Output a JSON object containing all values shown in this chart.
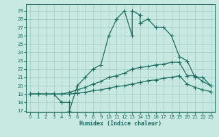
{
  "xlabel": "Humidex (Indice chaleur)",
  "bg_color": "#c8e8e2",
  "grid_color": "#a8cfc8",
  "line_color": "#1a6b60",
  "xlim": [
    -0.5,
    23.5
  ],
  "ylim": [
    16.8,
    29.8
  ],
  "yticks": [
    17,
    18,
    19,
    20,
    21,
    22,
    23,
    24,
    25,
    26,
    27,
    28,
    29
  ],
  "xticks": [
    0,
    1,
    2,
    3,
    4,
    5,
    6,
    7,
    8,
    9,
    10,
    11,
    12,
    13,
    14,
    15,
    16,
    17,
    18,
    19,
    20,
    21,
    22,
    23
  ],
  "curve1_x": [
    0,
    1,
    2,
    3,
    4,
    4,
    5,
    5,
    6,
    7,
    8,
    9,
    10,
    11,
    12,
    13,
    13,
    14,
    14,
    15,
    16,
    17,
    18,
    19,
    20,
    21,
    22,
    23
  ],
  "curve1_y": [
    19,
    19,
    19,
    19,
    18,
    18,
    18,
    17,
    20,
    21,
    22,
    22.5,
    26,
    28,
    29,
    26,
    29,
    28.5,
    27.5,
    28,
    27,
    27,
    26,
    23.5,
    23,
    21,
    21,
    20
  ],
  "curve2_x": [
    0,
    1,
    2,
    3,
    4,
    5,
    6,
    7,
    8,
    9,
    10,
    11,
    12,
    13,
    14,
    15,
    16,
    17,
    18,
    19,
    20,
    21,
    22,
    23
  ],
  "curve2_y": [
    19,
    19,
    19,
    19,
    19,
    19.2,
    19.5,
    19.8,
    20.2,
    20.5,
    21,
    21.2,
    21.5,
    22,
    22.2,
    22.3,
    22.5,
    22.6,
    22.8,
    22.8,
    21.2,
    21.2,
    20.5,
    20
  ],
  "curve3_x": [
    0,
    1,
    2,
    3,
    4,
    5,
    6,
    7,
    8,
    9,
    10,
    11,
    12,
    13,
    14,
    15,
    16,
    17,
    18,
    19,
    20,
    21,
    22,
    23
  ],
  "curve3_y": [
    19,
    19,
    19,
    19,
    19,
    19,
    19.1,
    19.2,
    19.4,
    19.5,
    19.7,
    19.9,
    20,
    20.2,
    20.4,
    20.6,
    20.7,
    20.9,
    21,
    21.2,
    20.2,
    19.8,
    19.5,
    19.3
  ]
}
